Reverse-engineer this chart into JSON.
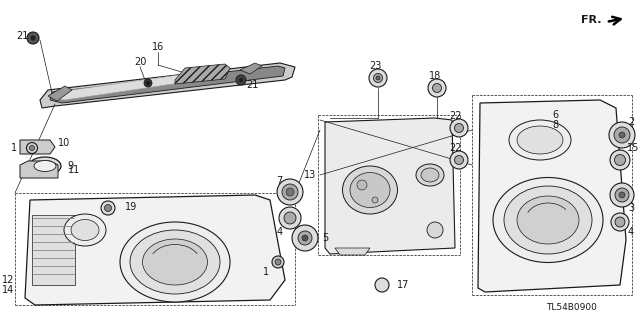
{
  "background_color": "#ffffff",
  "diagram_code": "TL54B0900",
  "line_color": "#1a1a1a",
  "gray_fill": "#e8e8e8",
  "dark_fill": "#555555",
  "mid_fill": "#aaaaaa",
  "light_fill": "#f5f5f5"
}
